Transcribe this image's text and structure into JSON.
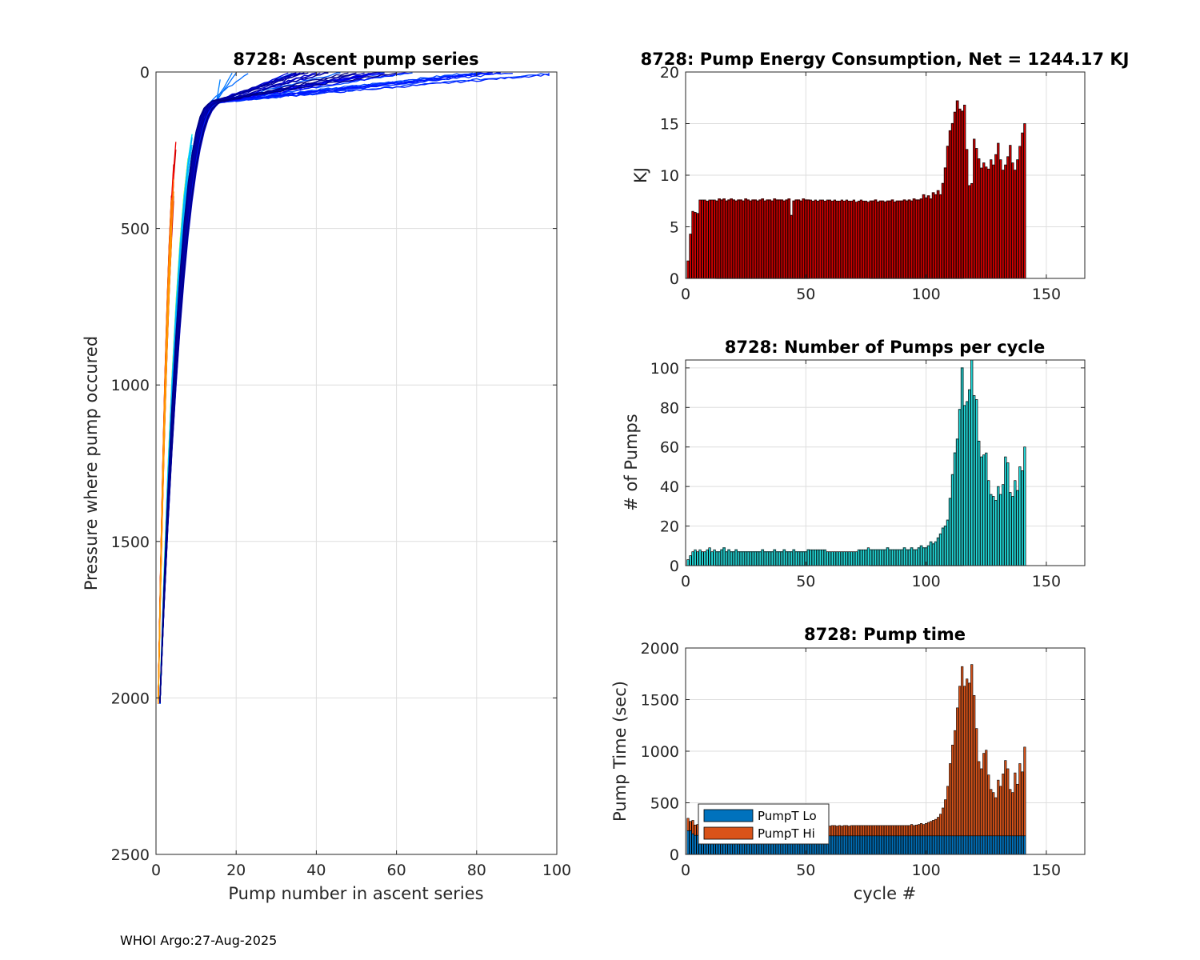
{
  "footer": "WHOI Argo:27-Aug-2025",
  "chart_data": [
    {
      "type": "line",
      "title": "8728: Ascent pump series",
      "xlabel": "Pump number in ascent series",
      "ylabel": "Pressure where pump occured",
      "xlim": [
        0,
        100
      ],
      "ylim": [
        0,
        2500
      ],
      "y_reversed": true,
      "xticks": [
        0,
        20,
        40,
        60,
        80,
        100
      ],
      "yticks": [
        0,
        500,
        1000,
        1500,
        2000,
        2500
      ],
      "grid": true,
      "colormap": "jet (by cycle)",
      "series_count": 141,
      "max_pump_number": 98
    },
    {
      "type": "bar",
      "title": "8728: Pump Energy Consumption,  Net = 1244.17 KJ",
      "xlabel": "",
      "ylabel": "KJ",
      "xlim": [
        0,
        166
      ],
      "ylim": [
        0,
        20
      ],
      "xticks": [
        0,
        50,
        100,
        150
      ],
      "yticks": [
        0,
        5,
        10,
        15,
        20
      ],
      "grid": true,
      "colors": [
        "#d40000",
        "#3a0000"
      ],
      "x_start": 1,
      "values": [
        1.7,
        4.3,
        6.5,
        6.4,
        6.3,
        7.6,
        7.6,
        7.6,
        7.5,
        7.6,
        7.6,
        7.6,
        7.5,
        7.7,
        7.6,
        7.7,
        7.5,
        7.6,
        7.7,
        7.6,
        7.5,
        7.6,
        7.6,
        7.5,
        7.7,
        7.6,
        7.5,
        7.6,
        7.6,
        7.5,
        7.6,
        7.7,
        7.5,
        7.6,
        7.6,
        7.5,
        7.7,
        7.6,
        7.6,
        7.6,
        7.5,
        7.6,
        7.7,
        6.1,
        7.5,
        7.6,
        7.6,
        7.5,
        7.7,
        7.6,
        7.6,
        7.6,
        7.5,
        7.6,
        7.5,
        7.6,
        7.6,
        7.5,
        7.6,
        7.6,
        7.5,
        7.6,
        7.5,
        7.5,
        7.6,
        7.5,
        7.6,
        7.5,
        7.5,
        7.6,
        7.4,
        7.5,
        7.6,
        7.5,
        7.5,
        7.4,
        7.5,
        7.5,
        7.6,
        7.4,
        7.5,
        7.5,
        7.4,
        7.5,
        7.5,
        7.6,
        7.4,
        7.5,
        7.5,
        7.5,
        7.6,
        7.5,
        7.6,
        7.5,
        7.7,
        7.6,
        7.6,
        7.7,
        8.1,
        7.8,
        8.0,
        7.7,
        8.3,
        8.1,
        8.5,
        8.1,
        9.2,
        10.7,
        12.8,
        14.3,
        15.0,
        16.1,
        17.2,
        16.4,
        16.2,
        16.8,
        12.5,
        9.0,
        9.2,
        13.5,
        12.6,
        11.6,
        10.7,
        11.2,
        10.8,
        10.6,
        11.5,
        11.0,
        12.0,
        13.1,
        11.5,
        10.5,
        11.0,
        11.8,
        12.9,
        11.2,
        10.5,
        11.5,
        12.8,
        14.1,
        15.0
      ]
    },
    {
      "type": "bar",
      "title": "8728: Number of Pumps per cycle",
      "xlabel": "",
      "ylabel": "# of Pumps",
      "xlim": [
        0,
        166
      ],
      "ylim": [
        0,
        104
      ],
      "xticks": [
        0,
        50,
        100,
        150
      ],
      "yticks": [
        0,
        20,
        40,
        60,
        80,
        100
      ],
      "grid": true,
      "colors": [
        "#22dddd",
        "#114444"
      ],
      "x_start": 1,
      "values": [
        3,
        5,
        7,
        8,
        7,
        8,
        7,
        7,
        8,
        9,
        7,
        8,
        7,
        7,
        8,
        9,
        7,
        8,
        7,
        7,
        8,
        7,
        7,
        7,
        7,
        7,
        7,
        7,
        7,
        7,
        7,
        8,
        7,
        7,
        7,
        7,
        8,
        7,
        7,
        7,
        8,
        7,
        7,
        7,
        8,
        7,
        7,
        7,
        7,
        7,
        8,
        8,
        8,
        8,
        8,
        8,
        8,
        8,
        7,
        7,
        7,
        7,
        7,
        7,
        7,
        7,
        7,
        7,
        7,
        7,
        7,
        8,
        8,
        8,
        8,
        9,
        8,
        8,
        8,
        8,
        8,
        8,
        8,
        9,
        8,
        8,
        8,
        8,
        8,
        8,
        9,
        8,
        8,
        9,
        8,
        8,
        9,
        10,
        9,
        9,
        10,
        12,
        11,
        12,
        14,
        16,
        19,
        20,
        23,
        34,
        46,
        57,
        64,
        79,
        100,
        81,
        83,
        89,
        104,
        86,
        84,
        63,
        55,
        56,
        57,
        43,
        36,
        35,
        33,
        40,
        36,
        41,
        55,
        52,
        37,
        35,
        43,
        38,
        50,
        48,
        60
      ]
    },
    {
      "type": "bar",
      "stacked": true,
      "title": "8728: Pump time",
      "xlabel": "cycle #",
      "ylabel": "Pump Time (sec)",
      "xlim": [
        0,
        166
      ],
      "ylim": [
        0,
        2000
      ],
      "xticks": [
        0,
        50,
        100,
        150
      ],
      "yticks": [
        0,
        500,
        1000,
        1500,
        2000
      ],
      "grid": true,
      "legend": "bottom-left",
      "x_start": 1,
      "series": [
        {
          "name": "PumpT Lo",
          "color": "#0072bd",
          "values": [
            230,
            230,
            200,
            185,
            185,
            180,
            180,
            180,
            180,
            180,
            180,
            180,
            180,
            180,
            180,
            180,
            180,
            180,
            180,
            180,
            180,
            180,
            180,
            180,
            180,
            180,
            180,
            180,
            180,
            180,
            180,
            180,
            180,
            180,
            180,
            180,
            180,
            180,
            180,
            180,
            180,
            180,
            180,
            180,
            180,
            180,
            180,
            180,
            180,
            180,
            180,
            180,
            180,
            180,
            180,
            180,
            180,
            180,
            180,
            180,
            180,
            180,
            180,
            180,
            180,
            180,
            180,
            180,
            180,
            180,
            180,
            180,
            180,
            180,
            180,
            180,
            180,
            180,
            180,
            180,
            180,
            180,
            180,
            180,
            180,
            180,
            180,
            180,
            180,
            180,
            180,
            180,
            180,
            180,
            180,
            180,
            180,
            180,
            180,
            180,
            180,
            180,
            180,
            180,
            180,
            180,
            180,
            180,
            180,
            180,
            180,
            180,
            180,
            180,
            180,
            180,
            180,
            180,
            180,
            180,
            180,
            180,
            180,
            180,
            180,
            180,
            180,
            180,
            180,
            180,
            180,
            180,
            180,
            180,
            180,
            180,
            180,
            180,
            180,
            180,
            180
          ]
        },
        {
          "name": "PumpT Hi",
          "color": "#d95319",
          "values": [
            120,
            90,
            130,
            100,
            105,
            95,
            100,
            100,
            95,
            105,
            100,
            100,
            100,
            95,
            100,
            105,
            100,
            100,
            95,
            100,
            100,
            95,
            100,
            95,
            100,
            100,
            95,
            100,
            100,
            95,
            100,
            100,
            95,
            100,
            95,
            100,
            100,
            95,
            100,
            100,
            95,
            100,
            100,
            95,
            100,
            100,
            95,
            100,
            100,
            95,
            100,
            100,
            95,
            100,
            100,
            100,
            95,
            100,
            100,
            95,
            100,
            100,
            95,
            100,
            95,
            100,
            100,
            95,
            100,
            100,
            100,
            100,
            100,
            100,
            100,
            100,
            100,
            100,
            100,
            100,
            100,
            100,
            100,
            100,
            100,
            100,
            100,
            100,
            100,
            100,
            100,
            100,
            100,
            110,
            100,
            105,
            110,
            120,
            110,
            120,
            130,
            140,
            150,
            160,
            180,
            210,
            270,
            350,
            480,
            700,
            880,
            1020,
            1240,
            1450,
            1640,
            1450,
            1520,
            1480,
            1660,
            1360,
            1040,
            720,
            650,
            800,
            830,
            590,
            450,
            420,
            370,
            540,
            480,
            600,
            730,
            650,
            450,
            420,
            610,
            500,
            700,
            620,
            860
          ]
        }
      ]
    }
  ]
}
